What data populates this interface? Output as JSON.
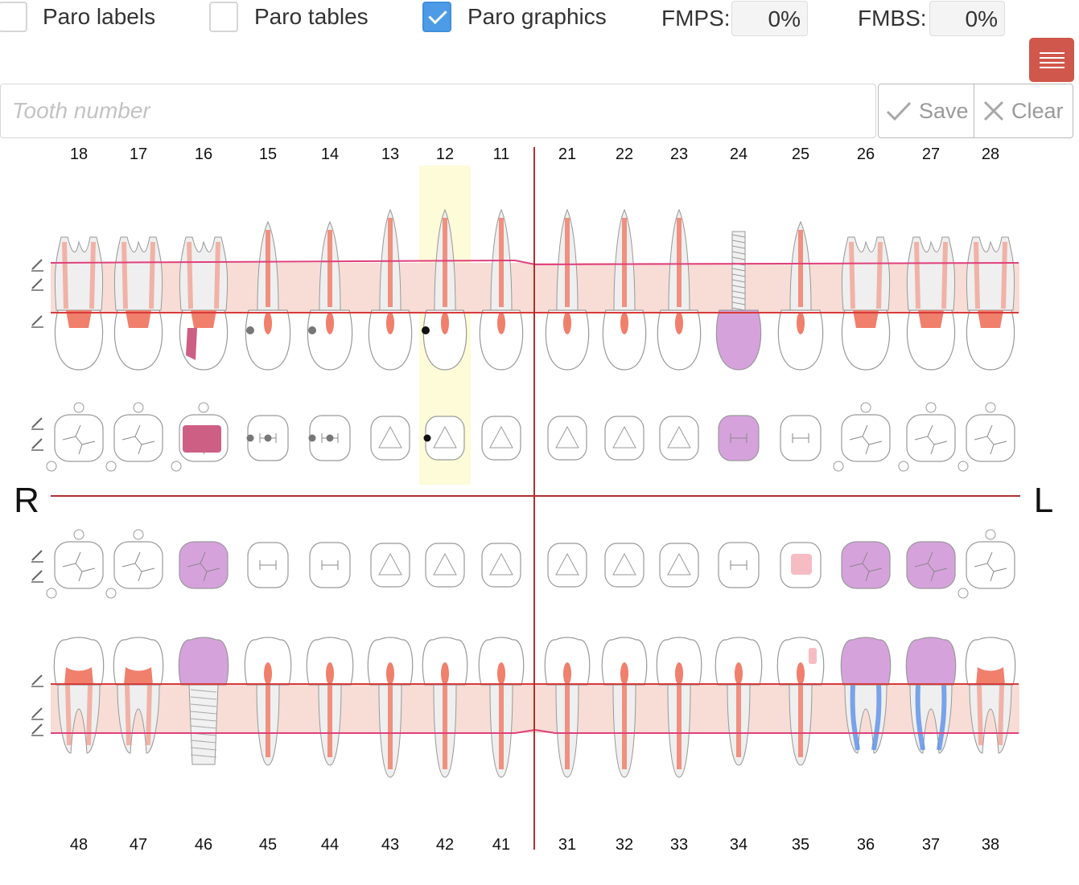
{
  "toolbar": {
    "paro_labels": "Paro labels",
    "paro_labels_checked": false,
    "paro_tables": "Paro tables",
    "paro_tables_checked": false,
    "paro_graphics": "Paro graphics",
    "paro_graphics_checked": true,
    "fmps_label": "FMPS:",
    "fmps_value": "0%",
    "fmbs_label": "FMBS:",
    "fmbs_value": "0%"
  },
  "entry": {
    "tooth_placeholder": "Tooth number",
    "save_label": "Save",
    "clear_label": "Clear"
  },
  "chart": {
    "side_right": "R",
    "side_left": "L",
    "upper_numbers": [
      "18",
      "17",
      "16",
      "15",
      "14",
      "13",
      "12",
      "11",
      "21",
      "22",
      "23",
      "24",
      "25",
      "26",
      "27",
      "28"
    ],
    "lower_numbers": [
      "48",
      "47",
      "46",
      "45",
      "44",
      "43",
      "42",
      "41",
      "31",
      "32",
      "33",
      "34",
      "35",
      "36",
      "37",
      "38"
    ],
    "selected_tooth": "12",
    "colors": {
      "pulp": "#f07f6c",
      "gum_band": "#f7ddd5",
      "gum_line": "#e0407c",
      "bone_line": "#d83a3a",
      "crown_restoration": "#d6a2dc",
      "filling_dark": "#cc5f83",
      "filling_light": "#f6bcc4",
      "root_canal": "#5b8ee6",
      "midline": "#b03030",
      "selection": "#fdfbd8"
    },
    "upper_crowned": [
      "24"
    ],
    "upper_implant": [
      "24"
    ],
    "lower_crowned": [
      "46",
      "36",
      "37"
    ],
    "lower_implant": [
      "46"
    ],
    "lower_root_canal": [
      "36",
      "37"
    ],
    "upper_filled": [
      "16"
    ],
    "lower_filled": [
      "35"
    ],
    "upper_dotted": [
      "15",
      "14",
      "12"
    ]
  }
}
